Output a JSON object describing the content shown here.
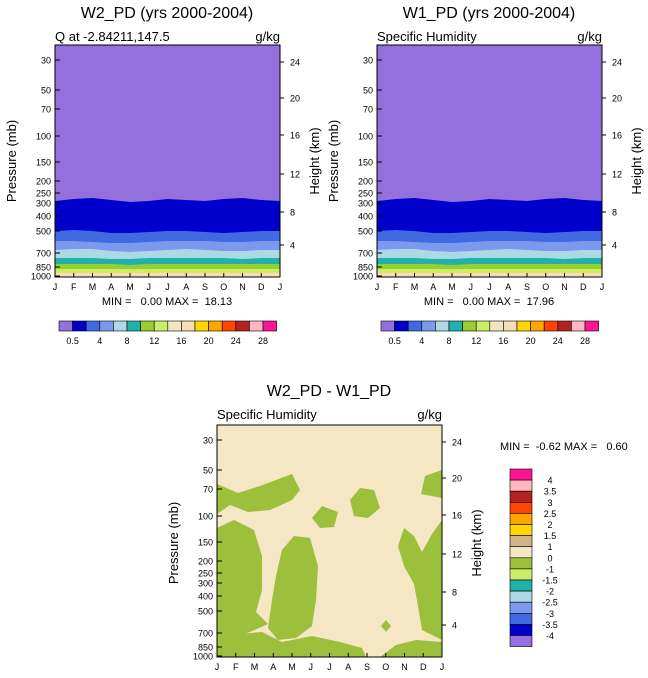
{
  "chart_data": [
    {
      "type": "filled-contour",
      "title": "W2_PD (yrs 2000-2004)",
      "subtitle_left": "Q at -2.84211,147.5",
      "subtitle_right": "g/kg",
      "ylabel": "Pressure (mb)",
      "ylabel_right": "Height (km)",
      "x_ticks": [
        "J",
        "F",
        "M",
        "A",
        "M",
        "J",
        "J",
        "A",
        "S",
        "O",
        "N",
        "D",
        "J"
      ],
      "y_ticks": [
        "30",
        "50",
        "70",
        "100",
        "150",
        "200",
        "250",
        "300",
        "400",
        "500",
        "700",
        "850",
        "1000"
      ],
      "right_ticks": [
        "24",
        "20",
        "16",
        "12",
        "8",
        "4"
      ],
      "ylim": [
        1000,
        20
      ],
      "min_max": "MIN =   0.00 MAX =  18.13",
      "colorbar_labels": [
        "0.5",
        "4",
        "8",
        "12",
        "16",
        "20",
        "24",
        "28"
      ],
      "levels": [
        0.5,
        2,
        4,
        6,
        8,
        10,
        12,
        14,
        16,
        18,
        20,
        22,
        24,
        26,
        28
      ]
    },
    {
      "type": "filled-contour",
      "title": "W1_PD (yrs 2000-2004)",
      "subtitle_left": "Specific Humidity",
      "subtitle_right": "g/kg",
      "ylabel": "Pressure (mb)",
      "ylabel_right": "Height (km)",
      "x_ticks": [
        "J",
        "F",
        "M",
        "A",
        "M",
        "J",
        "J",
        "A",
        "S",
        "O",
        "N",
        "D",
        "J"
      ],
      "y_ticks": [
        "30",
        "50",
        "70",
        "100",
        "150",
        "200",
        "250",
        "300",
        "400",
        "500",
        "700",
        "850",
        "1000"
      ],
      "right_ticks": [
        "24",
        "20",
        "16",
        "12",
        "8",
        "4"
      ],
      "ylim": [
        1000,
        20
      ],
      "min_max": "MIN =   0.00 MAX =  17.96",
      "colorbar_labels": [
        "0.5",
        "4",
        "8",
        "12",
        "16",
        "20",
        "24",
        "28"
      ],
      "levels": [
        0.5,
        2,
        4,
        6,
        8,
        10,
        12,
        14,
        16,
        18,
        20,
        22,
        24,
        26,
        28
      ]
    },
    {
      "type": "filled-contour",
      "title": "W2_PD - W1_PD",
      "subtitle_left": "Specific Humidity",
      "subtitle_right": "g/kg",
      "ylabel": "Pressure (mb)",
      "ylabel_right": "Height (km)",
      "x_ticks": [
        "J",
        "F",
        "M",
        "A",
        "M",
        "J",
        "J",
        "A",
        "S",
        "O",
        "N",
        "D",
        "J"
      ],
      "y_ticks": [
        "30",
        "50",
        "70",
        "100",
        "150",
        "200",
        "250",
        "300",
        "400",
        "500",
        "700",
        "850",
        "1000"
      ],
      "right_ticks": [
        "24",
        "20",
        "16",
        "12",
        "8",
        "4"
      ],
      "ylim": [
        1000,
        20
      ],
      "min_max": "MIN =  -0.62 MAX =   0.60",
      "colorbar_labels": [
        "4",
        "3.5",
        "3",
        "2.5",
        "2",
        "1.5",
        "1",
        "0",
        "-1",
        "-1.5",
        "-2",
        "-2.5",
        "-3",
        "-3.5",
        "-4"
      ]
    }
  ],
  "colors": {
    "q_scale": [
      "#9370db",
      "#0000cd",
      "#4169e1",
      "#7b9aed",
      "#add8e6",
      "#20b2aa",
      "#9acd32",
      "#ccee66",
      "#f0e6c0",
      "#f5deb3",
      "#ffd700",
      "#ffa500",
      "#ff4500",
      "#b22222",
      "#ffb6c1",
      "#ff1493"
    ],
    "diff_scale": [
      "#ff1493",
      "#ffb6c1",
      "#b22222",
      "#ff4500",
      "#ffa500",
      "#ffd700",
      "#d2b48c",
      "#f5e6c4",
      "#9cbf3c",
      "#ccee66",
      "#20b2aa",
      "#add8e6",
      "#7b9aed",
      "#4169e1",
      "#0000cd",
      "#9370db"
    ],
    "diff_background": "#f5e6c4",
    "diff_blob": "#9cbf3c",
    "q_stack": [
      "#0000cd",
      "#4169e1",
      "#7b9aed",
      "#add8e6",
      "#20b2aa",
      "#9acd32",
      "#ccee66",
      "#f5deb3",
      "#f0e6c0"
    ]
  }
}
